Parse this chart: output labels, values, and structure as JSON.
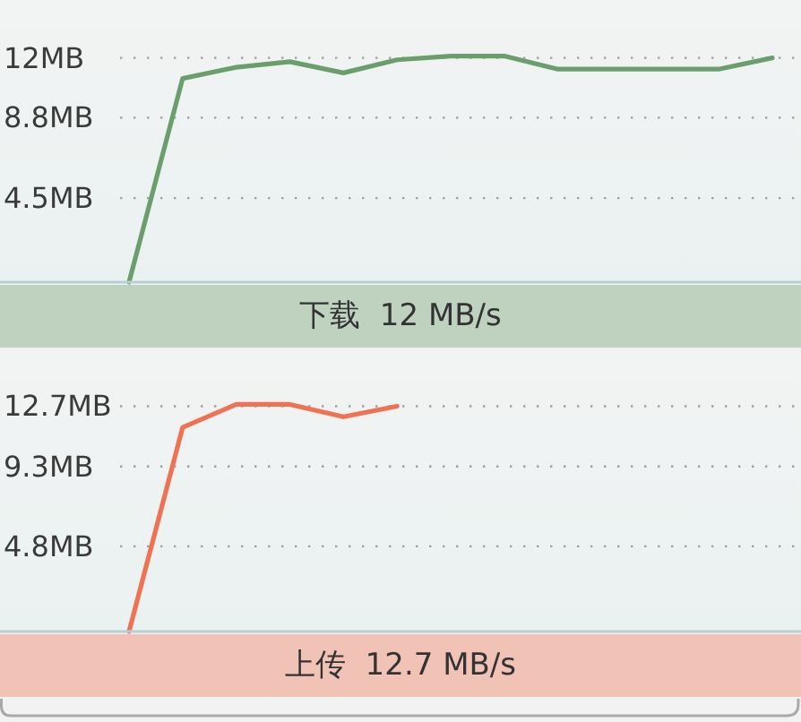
{
  "chart_data": [
    {
      "type": "line",
      "xlabel": "下载  12 MB/s",
      "categories": [
        null,
        null,
        null,
        null,
        null,
        null,
        null,
        null,
        null,
        null,
        null,
        null,
        null
      ],
      "series": [
        {
          "color": "#6a9f6c",
          "values": [
            0,
            10.9,
            11.5,
            11.8,
            11.2,
            11.9,
            12.1,
            12.1,
            11.4,
            11.4,
            11.4,
            11.4,
            12.0
          ]
        }
      ],
      "ylim": [
        0,
        15.1
      ],
      "yticks": [
        {
          "value": 4.5,
          "label": "4.5MB"
        },
        {
          "value": 8.8,
          "label": "8.8MB"
        },
        {
          "value": 12,
          "label": "12MB"
        }
      ],
      "grid": "y",
      "tick_labels": "y"
    },
    {
      "type": "line",
      "xlabel": "上传  12.7 MB/s",
      "categories": [
        null,
        null,
        null,
        null,
        null,
        null,
        null,
        null,
        null,
        null,
        null,
        null,
        null
      ],
      "series": [
        {
          "color": "#ef7353",
          "values": [
            0,
            11.5,
            12.8,
            12.8,
            12.1,
            12.7,
            null,
            null,
            null,
            null,
            null,
            null,
            null
          ]
        }
      ],
      "ylim": [
        0,
        15.7
      ],
      "yticks": [
        {
          "value": 4.8,
          "label": "4.8MB"
        },
        {
          "value": 9.3,
          "label": "9.3MB"
        },
        {
          "value": 12.7,
          "label": "12.7MB"
        }
      ],
      "grid": "y",
      "tick_labels": "y"
    }
  ]
}
